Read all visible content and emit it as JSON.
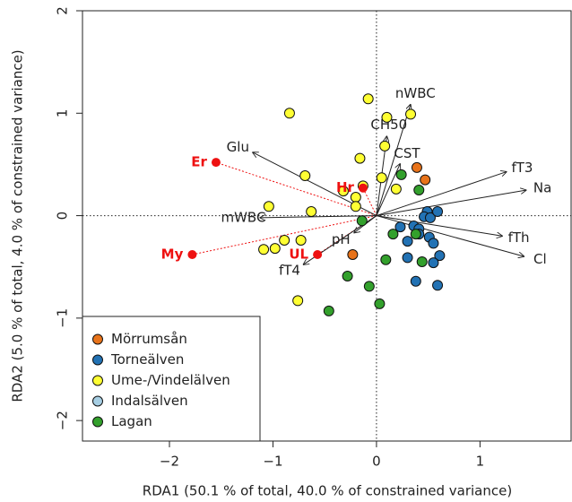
{
  "chart_data": {
    "type": "biplot",
    "x_label": "RDA1 (50.1 % of total, 40.0 % of constrained variance)",
    "y_label": "RDA2 (5.0 % of total, 4.0 % of constrained variance)",
    "xlim": [
      -2.84,
      1.88
    ],
    "ylim": [
      -2.2,
      2.0
    ],
    "xticks": [
      {
        "value": -2,
        "label": "−2"
      },
      {
        "value": -1,
        "label": "−1"
      },
      0,
      1
    ],
    "yticks": [
      {
        "value": -2,
        "label": "−2"
      },
      {
        "value": -1,
        "label": "−1"
      },
      0,
      1,
      2
    ],
    "zero_lines": true,
    "legend": "bottom-left",
    "series": [
      {
        "name": "Mörrumsån",
        "color": "#e8731a",
        "x": [
          0.39,
          0.47,
          -0.23
        ],
        "y": [
          0.47,
          0.35,
          -0.38
        ]
      },
      {
        "name": "Torneälven",
        "color": "#2272b4",
        "x": [
          0.49,
          0.46,
          0.52,
          0.36,
          0.41,
          0.59,
          0.23,
          0.41,
          0.51,
          0.3,
          0.55,
          0.61,
          0.3,
          0.55,
          0.38,
          0.59
        ],
        "y": [
          0.04,
          -0.01,
          -0.02,
          -0.1,
          -0.13,
          0.04,
          -0.11,
          -0.18,
          -0.21,
          -0.25,
          -0.27,
          -0.39,
          -0.41,
          -0.46,
          -0.64,
          -0.68
        ]
      },
      {
        "name": "Ume-/Vindelälven",
        "color": "#ffff33",
        "x": [
          -0.08,
          0.1,
          0.33,
          -0.84,
          0.08,
          -0.16,
          -0.69,
          0.05,
          0.19,
          -0.32,
          -0.2,
          -0.13,
          -0.63,
          -1.04,
          -0.89,
          -0.98,
          -1.09,
          -0.73,
          -0.76,
          -0.2
        ],
        "y": [
          1.14,
          0.96,
          0.99,
          1.0,
          0.68,
          0.56,
          0.39,
          0.37,
          0.26,
          0.24,
          0.18,
          0.29,
          0.04,
          0.09,
          -0.24,
          -0.32,
          -0.33,
          -0.24,
          -0.83,
          0.09
        ]
      },
      {
        "name": "Indalsälven",
        "color": "#a6cee3",
        "x": [],
        "y": []
      },
      {
        "name": "Lagan",
        "color": "#33a02c",
        "x": [
          0.24,
          0.41,
          -0.14,
          0.16,
          0.38,
          0.09,
          0.44,
          -0.28,
          -0.07,
          -0.46,
          0.03
        ],
        "y": [
          0.4,
          0.25,
          -0.05,
          -0.18,
          -0.18,
          -0.43,
          -0.45,
          -0.59,
          -0.69,
          -0.93,
          -0.86
        ]
      }
    ],
    "sites": {
      "color": "#ee1111",
      "names": [
        "Er",
        "My",
        "Hr",
        "UL"
      ],
      "x": [
        -1.55,
        -1.78,
        -0.13,
        -0.57
      ],
      "y": [
        0.52,
        -0.38,
        0.27,
        -0.38
      ]
    },
    "arrows": {
      "names": [
        "nWBC",
        "CH50",
        "CST",
        "fT3",
        "Na",
        "fTh",
        "Cl",
        "pH",
        "fT4",
        "mWBC",
        "Glu"
      ],
      "x": [
        0.33,
        0.1,
        0.23,
        1.26,
        1.45,
        1.22,
        1.43,
        -0.22,
        -0.71,
        -1.13,
        -1.2
      ],
      "y": [
        1.09,
        0.78,
        0.51,
        0.43,
        0.25,
        -0.2,
        -0.4,
        -0.17,
        -0.48,
        -0.02,
        0.62
      ]
    }
  }
}
